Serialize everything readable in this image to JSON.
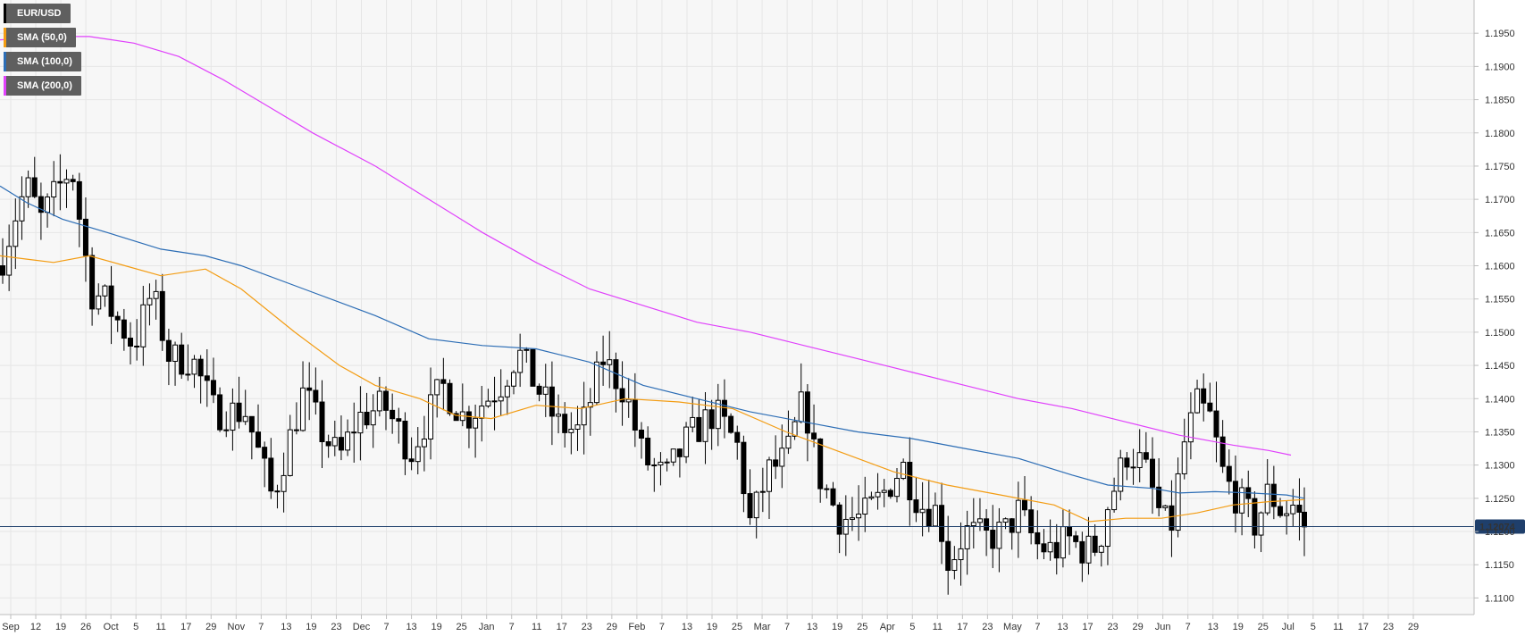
{
  "legend": [
    {
      "label": "EUR/USD",
      "color": "#000000"
    },
    {
      "label": "SMA (50,0)",
      "color": "#f39c12"
    },
    {
      "label": "SMA (100,0)",
      "color": "#2c6db5"
    },
    {
      "label": "SMA (200,0)",
      "color": "#e040fb"
    }
  ],
  "colors": {
    "bull_fill": "#ffffff",
    "bear_fill": "#000000",
    "candle_stroke": "#000000",
    "grid": "#e6e6e6",
    "plot_bg": "#f7f7f7",
    "price_line": "#1f3f6b",
    "price_tag_bg": "#1f3f6b",
    "price_tag_text": "#ffffff"
  },
  "chart_data": {
    "type": "candlestick",
    "title": "",
    "xlabel": "",
    "ylabel": "",
    "ylim": [
      1.1075,
      1.2
    ],
    "y_ticks": [
      "1.1100",
      "1.1150",
      "1.1200",
      "1.1250",
      "1.1300",
      "1.1350",
      "1.1400",
      "1.1450",
      "1.1500",
      "1.1550",
      "1.1600",
      "1.1650",
      "1.1700",
      "1.1750",
      "1.1800",
      "1.1850",
      "1.1900",
      "1.1950"
    ],
    "x_ticks": [
      "Sep",
      "12",
      "19",
      "26",
      "Oct",
      "5",
      "11",
      "17",
      "29",
      "Nov",
      "7",
      "13",
      "19",
      "23",
      "Dec",
      "7",
      "13",
      "19",
      "25",
      "Jan",
      "7",
      "11",
      "17",
      "23",
      "29",
      "Feb",
      "7",
      "13",
      "19",
      "25",
      "Mar",
      "7",
      "13",
      "19",
      "25",
      "Apr",
      "5",
      "11",
      "17",
      "23",
      "May",
      "7",
      "13",
      "17",
      "23",
      "29",
      "Jun",
      "7",
      "13",
      "19",
      "25",
      "Jul",
      "5",
      "11",
      "17",
      "23",
      "29"
    ],
    "current_price": "1.12074",
    "series": [
      {
        "name": "EUR/USD",
        "kind": "ohlc",
        "anchors": [
          {
            "x": 0,
            "v": 1.16
          },
          {
            "x": 18,
            "v": 1.168
          },
          {
            "x": 30,
            "v": 1.172
          },
          {
            "x": 46,
            "v": 1.167
          },
          {
            "x": 80,
            "v": 1.175
          },
          {
            "x": 102,
            "v": 1.156
          },
          {
            "x": 116,
            "v": 1.155
          },
          {
            "x": 150,
            "v": 1.148
          },
          {
            "x": 170,
            "v": 1.156
          },
          {
            "x": 190,
            "v": 1.146
          },
          {
            "x": 215,
            "v": 1.146
          },
          {
            "x": 240,
            "v": 1.138
          },
          {
            "x": 275,
            "v": 1.138
          },
          {
            "x": 305,
            "v": 1.125
          },
          {
            "x": 320,
            "v": 1.132
          },
          {
            "x": 340,
            "v": 1.141
          },
          {
            "x": 360,
            "v": 1.135
          },
          {
            "x": 380,
            "v": 1.131
          },
          {
            "x": 400,
            "v": 1.137
          },
          {
            "x": 430,
            "v": 1.139
          },
          {
            "x": 460,
            "v": 1.132
          },
          {
            "x": 495,
            "v": 1.142
          },
          {
            "x": 520,
            "v": 1.137
          },
          {
            "x": 545,
            "v": 1.14
          },
          {
            "x": 560,
            "v": 1.142
          },
          {
            "x": 580,
            "v": 1.147
          },
          {
            "x": 600,
            "v": 1.142
          },
          {
            "x": 625,
            "v": 1.136
          },
          {
            "x": 650,
            "v": 1.135
          },
          {
            "x": 675,
            "v": 1.146
          },
          {
            "x": 700,
            "v": 1.141
          },
          {
            "x": 720,
            "v": 1.131
          },
          {
            "x": 745,
            "v": 1.128
          },
          {
            "x": 770,
            "v": 1.134
          },
          {
            "x": 800,
            "v": 1.138
          },
          {
            "x": 825,
            "v": 1.133
          },
          {
            "x": 840,
            "v": 1.121
          },
          {
            "x": 860,
            "v": 1.129
          },
          {
            "x": 880,
            "v": 1.131
          },
          {
            "x": 900,
            "v": 1.14
          },
          {
            "x": 915,
            "v": 1.129
          },
          {
            "x": 940,
            "v": 1.122
          },
          {
            "x": 965,
            "v": 1.122
          },
          {
            "x": 985,
            "v": 1.125
          },
          {
            "x": 1010,
            "v": 1.13
          },
          {
            "x": 1030,
            "v": 1.124
          },
          {
            "x": 1050,
            "v": 1.123
          },
          {
            "x": 1062,
            "v": 1.115
          },
          {
            "x": 1080,
            "v": 1.12
          },
          {
            "x": 1105,
            "v": 1.119
          },
          {
            "x": 1125,
            "v": 1.12
          },
          {
            "x": 1140,
            "v": 1.123
          },
          {
            "x": 1160,
            "v": 1.118
          },
          {
            "x": 1180,
            "v": 1.117
          },
          {
            "x": 1195,
            "v": 1.119
          },
          {
            "x": 1215,
            "v": 1.117
          },
          {
            "x": 1230,
            "v": 1.118
          },
          {
            "x": 1240,
            "v": 1.124
          },
          {
            "x": 1262,
            "v": 1.132
          },
          {
            "x": 1280,
            "v": 1.13
          },
          {
            "x": 1300,
            "v": 1.122
          },
          {
            "x": 1310,
            "v": 1.12
          },
          {
            "x": 1325,
            "v": 1.133
          },
          {
            "x": 1340,
            "v": 1.139
          },
          {
            "x": 1355,
            "v": 1.137
          },
          {
            "x": 1370,
            "v": 1.128
          },
          {
            "x": 1390,
            "v": 1.124
          },
          {
            "x": 1405,
            "v": 1.121
          },
          {
            "x": 1420,
            "v": 1.126
          },
          {
            "x": 1435,
            "v": 1.123
          },
          {
            "x": 1448,
            "v": 1.124
          },
          {
            "x": 1460,
            "v": 1.1207
          }
        ]
      },
      {
        "name": "SMA (50,0)",
        "kind": "line",
        "points": [
          {
            "x": 0,
            "v": 1.1615
          },
          {
            "x": 30,
            "v": 1.161
          },
          {
            "x": 60,
            "v": 1.1605
          },
          {
            "x": 100,
            "v": 1.1615
          },
          {
            "x": 140,
            "v": 1.16
          },
          {
            "x": 180,
            "v": 1.1585
          },
          {
            "x": 230,
            "v": 1.1595
          },
          {
            "x": 270,
            "v": 1.1565
          },
          {
            "x": 330,
            "v": 1.15
          },
          {
            "x": 380,
            "v": 1.145
          },
          {
            "x": 420,
            "v": 1.142
          },
          {
            "x": 470,
            "v": 1.14
          },
          {
            "x": 510,
            "v": 1.1375
          },
          {
            "x": 550,
            "v": 1.137
          },
          {
            "x": 600,
            "v": 1.139
          },
          {
            "x": 650,
            "v": 1.1385
          },
          {
            "x": 700,
            "v": 1.14
          },
          {
            "x": 760,
            "v": 1.1395
          },
          {
            "x": 820,
            "v": 1.1385
          },
          {
            "x": 880,
            "v": 1.135
          },
          {
            "x": 940,
            "v": 1.132
          },
          {
            "x": 1000,
            "v": 1.129
          },
          {
            "x": 1060,
            "v": 1.127
          },
          {
            "x": 1120,
            "v": 1.1255
          },
          {
            "x": 1180,
            "v": 1.124
          },
          {
            "x": 1220,
            "v": 1.1215
          },
          {
            "x": 1260,
            "v": 1.122
          },
          {
            "x": 1300,
            "v": 1.122
          },
          {
            "x": 1340,
            "v": 1.1228
          },
          {
            "x": 1380,
            "v": 1.124
          },
          {
            "x": 1420,
            "v": 1.1245
          },
          {
            "x": 1460,
            "v": 1.1248
          }
        ]
      },
      {
        "name": "SMA (100,0)",
        "kind": "line",
        "points": [
          {
            "x": 0,
            "v": 1.172
          },
          {
            "x": 30,
            "v": 1.1695
          },
          {
            "x": 70,
            "v": 1.167
          },
          {
            "x": 120,
            "v": 1.165
          },
          {
            "x": 180,
            "v": 1.1625
          },
          {
            "x": 230,
            "v": 1.1615
          },
          {
            "x": 270,
            "v": 1.16
          },
          {
            "x": 340,
            "v": 1.1565
          },
          {
            "x": 420,
            "v": 1.1525
          },
          {
            "x": 480,
            "v": 1.149
          },
          {
            "x": 540,
            "v": 1.148
          },
          {
            "x": 600,
            "v": 1.1475
          },
          {
            "x": 660,
            "v": 1.1455
          },
          {
            "x": 720,
            "v": 1.142
          },
          {
            "x": 780,
            "v": 1.14
          },
          {
            "x": 840,
            "v": 1.138
          },
          {
            "x": 900,
            "v": 1.1365
          },
          {
            "x": 960,
            "v": 1.135
          },
          {
            "x": 1020,
            "v": 1.134
          },
          {
            "x": 1080,
            "v": 1.1325
          },
          {
            "x": 1140,
            "v": 1.131
          },
          {
            "x": 1200,
            "v": 1.1285
          },
          {
            "x": 1240,
            "v": 1.127
          },
          {
            "x": 1290,
            "v": 1.1265
          },
          {
            "x": 1320,
            "v": 1.1258
          },
          {
            "x": 1360,
            "v": 1.126
          },
          {
            "x": 1400,
            "v": 1.1258
          },
          {
            "x": 1440,
            "v": 1.1255
          },
          {
            "x": 1460,
            "v": 1.125
          }
        ]
      },
      {
        "name": "SMA (200,0)",
        "kind": "line",
        "points": [
          {
            "x": 0,
            "v": 1.194
          },
          {
            "x": 60,
            "v": 1.1945
          },
          {
            "x": 100,
            "v": 1.1945
          },
          {
            "x": 150,
            "v": 1.1935
          },
          {
            "x": 200,
            "v": 1.1915
          },
          {
            "x": 250,
            "v": 1.188
          },
          {
            "x": 300,
            "v": 1.184
          },
          {
            "x": 350,
            "v": 1.18
          },
          {
            "x": 420,
            "v": 1.175
          },
          {
            "x": 480,
            "v": 1.17
          },
          {
            "x": 540,
            "v": 1.165
          },
          {
            "x": 600,
            "v": 1.1605
          },
          {
            "x": 660,
            "v": 1.1565
          },
          {
            "x": 720,
            "v": 1.154
          },
          {
            "x": 780,
            "v": 1.1515
          },
          {
            "x": 840,
            "v": 1.15
          },
          {
            "x": 900,
            "v": 1.148
          },
          {
            "x": 960,
            "v": 1.146
          },
          {
            "x": 1020,
            "v": 1.144
          },
          {
            "x": 1080,
            "v": 1.142
          },
          {
            "x": 1140,
            "v": 1.14
          },
          {
            "x": 1200,
            "v": 1.1385
          },
          {
            "x": 1260,
            "v": 1.1365
          },
          {
            "x": 1320,
            "v": 1.1345
          },
          {
            "x": 1380,
            "v": 1.133
          },
          {
            "x": 1420,
            "v": 1.1322
          },
          {
            "x": 1445,
            "v": 1.1315
          }
        ]
      }
    ]
  }
}
